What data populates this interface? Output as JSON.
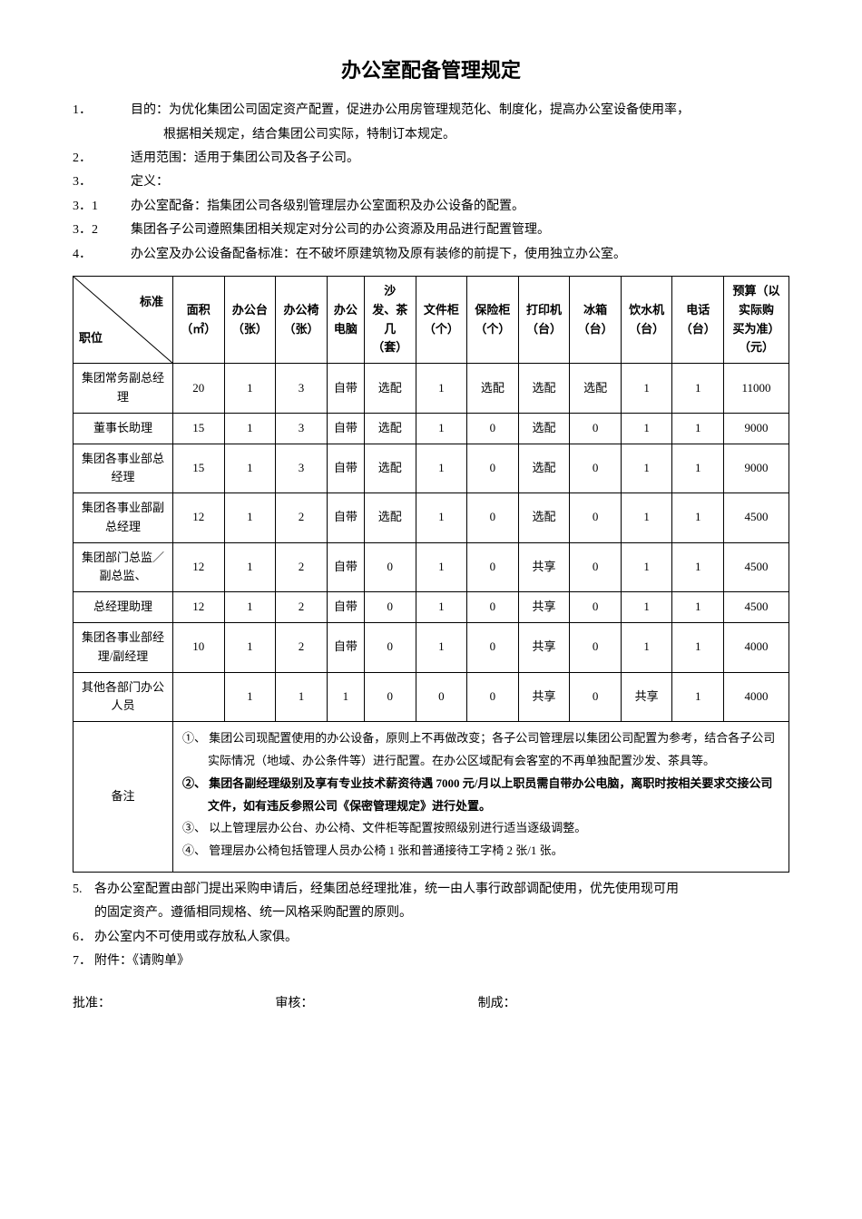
{
  "title": "办公室配备管理规定",
  "items": {
    "i1": {
      "num": "1．",
      "text": "目的：为优化集团公司固定资产配置，促进办公用房管理规范化、制度化，提高办公室设备使用率，",
      "text2": "根据相关规定，结合集团公司实际，特制订本规定。"
    },
    "i2": {
      "num": "2．",
      "text": "适用范围：适用于集团公司及各子公司。"
    },
    "i3": {
      "num": "3．",
      "text": "定义："
    },
    "i31": {
      "num": "3．1",
      "text": "办公室配备：指集团公司各级别管理层办公室面积及办公设备的配置。"
    },
    "i32": {
      "num": "3．2",
      "text": "集团各子公司遵照集团相关规定对分公司的办公资源及用品进行配置管理。"
    },
    "i4": {
      "num": "4．",
      "text": "办公室及办公设备配备标准：在不破坏原建筑物及原有装修的前提下，使用独立办公室。"
    }
  },
  "table": {
    "diag": {
      "top": "标准",
      "bottom": "职位"
    },
    "headers": {
      "h1": {
        "l1": "面积",
        "l2": "（㎡）"
      },
      "h2": {
        "l1": "办公台",
        "l2": "（张）"
      },
      "h3": {
        "l1": "办公椅",
        "l2": "（张）"
      },
      "h4": {
        "l1": "办公",
        "l2": "电脑"
      },
      "h5": {
        "l1": "沙",
        "l2": "发、茶",
        "l3": "几",
        "l4": "（套）"
      },
      "h6": {
        "l1": "文件柜",
        "l2": "（个）"
      },
      "h7": {
        "l1": "保险柜",
        "l2": "（个）"
      },
      "h8": {
        "l1": "打印机",
        "l2": "（台）"
      },
      "h9": {
        "l1": "冰箱",
        "l2": "（台）"
      },
      "h10": {
        "l1": "饮水机",
        "l2": "（台）"
      },
      "h11": {
        "l1": "电话",
        "l2": "（台）"
      },
      "h12": {
        "l1": "预算（以",
        "l2": "实际购",
        "l3": "买为准）",
        "l4": "（元）"
      }
    },
    "rows": [
      {
        "pos": "集团常务副总经理",
        "c": [
          "20",
          "1",
          "3",
          "自带",
          "选配",
          "1",
          "选配",
          "选配",
          "选配",
          "1",
          "1",
          "11000"
        ]
      },
      {
        "pos": "董事长助理",
        "c": [
          "15",
          "1",
          "3",
          "自带",
          "选配",
          "1",
          "0",
          "选配",
          "0",
          "1",
          "1",
          "9000"
        ]
      },
      {
        "pos": "集团各事业部总经理",
        "c": [
          "15",
          "1",
          "3",
          "自带",
          "选配",
          "1",
          "0",
          "选配",
          "0",
          "1",
          "1",
          "9000"
        ]
      },
      {
        "pos": "集团各事业部副总经理",
        "c": [
          "12",
          "1",
          "2",
          "自带",
          "选配",
          "1",
          "0",
          "选配",
          "0",
          "1",
          "1",
          "4500"
        ]
      },
      {
        "pos": "集团部门总监／副总监、",
        "c": [
          "12",
          "1",
          "2",
          "自带",
          "0",
          "1",
          "0",
          "共享",
          "0",
          "1",
          "1",
          "4500"
        ]
      },
      {
        "pos": "总经理助理",
        "c": [
          "12",
          "1",
          "2",
          "自带",
          "0",
          "1",
          "0",
          "共享",
          "0",
          "1",
          "1",
          "4500"
        ]
      },
      {
        "pos": "集团各事业部经理/副经理",
        "c": [
          "10",
          "1",
          "2",
          "自带",
          "0",
          "1",
          "0",
          "共享",
          "0",
          "1",
          "1",
          "4000"
        ]
      },
      {
        "pos": "其他各部门办公人员",
        "c": [
          "",
          "1",
          "1",
          "1",
          "0",
          "0",
          "0",
          "共享",
          "0",
          "共享",
          "1",
          "4000"
        ]
      }
    ],
    "notes": {
      "label": "备注",
      "n1a": "①、 集团公司现配置使用的办公设备，原则上不再做改变；各子公司管理层以集团公司配置为参考，结合各子公司",
      "n1b": "实际情况（地域、办公条件等）进行配置。在办公区域配有会客室的不再单独配置沙发、茶具等。",
      "n2a": "②、 集团各副经理级别及享有专业技术薪资待遇 7000 元/月以上职员需自带办公电脑，离职时按相关要求交接公司",
      "n2b": "文件，如有违反参照公司《保密管理规定》进行处置。",
      "n3": "③、 以上管理层办公台、办公椅、文件柜等配置按照级别进行适当逐级调整。",
      "n4": "④、 管理层办公椅包括管理人员办公椅 1 张和普通接待工字椅 2 张/1 张。"
    }
  },
  "after": {
    "a5a": {
      "num": "5.",
      "text": "各办公室配置由部门提出采购申请后，经集团总经理批准，统一由人事行政部调配使用，优先使用现可用"
    },
    "a5b": "的固定资产。遵循相同规格、统一风格采购配置的原则。",
    "a6": {
      "num": "6．",
      "text": "办公室内不可使用或存放私人家俱。"
    },
    "a7": {
      "num": "7．",
      "text": "附件：《请购单》"
    }
  },
  "sig": {
    "s1": "批准：",
    "s2": "审核：",
    "s3": "制成："
  }
}
